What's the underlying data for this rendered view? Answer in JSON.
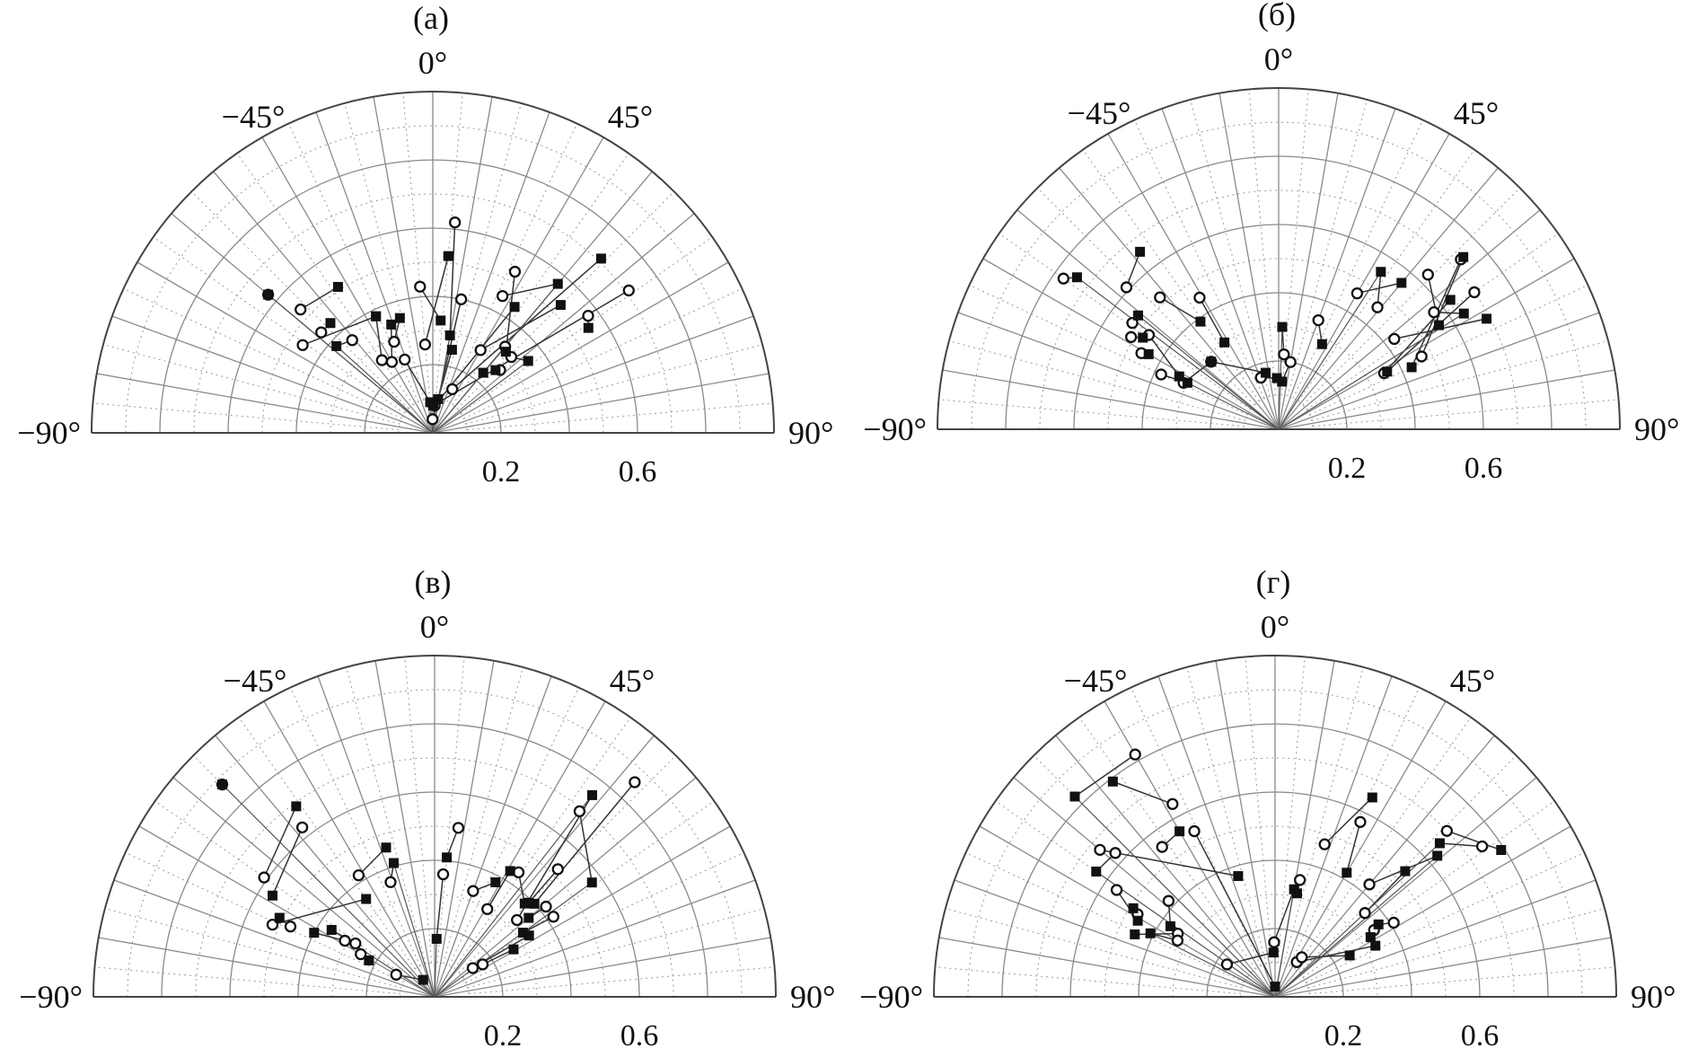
{
  "chart_data": [
    {
      "type": "scatter",
      "panel_label": "(а)",
      "angle_tick_labels": [
        "−90°",
        "−45°",
        "0°",
        "45°",
        "90°"
      ],
      "radial_tick_labels": [
        "0.2",
        "0.6"
      ],
      "rlim": [
        0,
        1
      ],
      "thetalim": [
        -90,
        90
      ],
      "grid": true,
      "series": [
        {
          "marker": "circle",
          "points": [
            {
              "theta": -50,
              "r": 0.63
            },
            {
              "theta": -47,
              "r": 0.53
            },
            {
              "theta": -48,
              "r": 0.44
            },
            {
              "theta": -56,
              "r": 0.46
            },
            {
              "theta": -41,
              "r": 0.36
            },
            {
              "theta": -35,
              "r": 0.26
            },
            {
              "theta": -30,
              "r": 0.24
            },
            {
              "theta": -23,
              "r": 0.29
            },
            {
              "theta": -21,
              "r": 0.23
            },
            {
              "theta": -5,
              "r": 0.43
            },
            {
              "theta": -5,
              "r": 0.26
            },
            {
              "theta": -1,
              "r": 0.04
            },
            {
              "theta": 6,
              "r": 0.62
            },
            {
              "theta": 12,
              "r": 0.4
            },
            {
              "theta": 4,
              "r": 0.08
            },
            {
              "theta": 27,
              "r": 0.53
            },
            {
              "theta": 27,
              "r": 0.45
            },
            {
              "theta": 30,
              "r": 0.28
            },
            {
              "theta": 40,
              "r": 0.33
            },
            {
              "theta": 47,
              "r": 0.27
            },
            {
              "theta": 46,
              "r": 0.32
            },
            {
              "theta": 53,
              "r": 0.57
            },
            {
              "theta": 54,
              "r": 0.71
            },
            {
              "theta": 24,
              "r": 0.14
            }
          ]
        },
        {
          "marker": "square",
          "points": [
            {
              "theta": -50,
              "r": 0.63
            },
            {
              "theta": -33,
              "r": 0.51
            },
            {
              "theta": -43,
              "r": 0.44
            },
            {
              "theta": -26,
              "r": 0.38
            },
            {
              "theta": -48,
              "r": 0.38
            },
            {
              "theta": -26,
              "r": 0.38
            },
            {
              "theta": -21,
              "r": 0.34
            },
            {
              "theta": -16,
              "r": 0.35
            },
            {
              "theta": -5,
              "r": 0.09
            },
            {
              "theta": 4,
              "r": 0.33
            },
            {
              "theta": 5,
              "r": 0.52
            },
            {
              "theta": 13,
              "r": 0.25
            },
            {
              "theta": 10,
              "r": 0.29
            },
            {
              "theta": 9,
              "r": 0.1
            },
            {
              "theta": 33,
              "r": 0.44
            },
            {
              "theta": 42,
              "r": 0.32
            },
            {
              "theta": 40,
              "r": 0.57
            },
            {
              "theta": 45,
              "r": 0.53
            },
            {
              "theta": 40,
              "r": 0.23
            },
            {
              "theta": 45,
              "r": 0.26
            },
            {
              "theta": 53,
              "r": 0.35
            },
            {
              "theta": 56,
              "r": 0.55
            },
            {
              "theta": 1,
              "r": 0.08
            },
            {
              "theta": 44,
              "r": 0.71
            }
          ]
        }
      ]
    },
    {
      "type": "scatter",
      "panel_label": "(б)",
      "angle_tick_labels": [
        "−90°",
        "−45°",
        "0°",
        "45°",
        "90°"
      ],
      "radial_tick_labels": [
        "0.2",
        "0.6"
      ],
      "rlim": [
        0,
        1
      ],
      "thetalim": [
        -90,
        90
      ],
      "grid": true,
      "series": [
        {
          "marker": "circle",
          "points": [
            {
              "theta": -55,
              "r": 0.77
            },
            {
              "theta": -47,
              "r": 0.61
            },
            {
              "theta": -42,
              "r": 0.52
            },
            {
              "theta": -31,
              "r": 0.45
            },
            {
              "theta": -54,
              "r": 0.53
            },
            {
              "theta": -58,
              "r": 0.51
            },
            {
              "theta": -61,
              "r": 0.46
            },
            {
              "theta": -54,
              "r": 0.47
            },
            {
              "theta": -65,
              "r": 0.38
            },
            {
              "theta": -64,
              "r": 0.31
            },
            {
              "theta": -45,
              "r": 0.28
            },
            {
              "theta": -19,
              "r": 0.16
            },
            {
              "theta": 4,
              "r": 0.22
            },
            {
              "theta": 10,
              "r": 0.2
            },
            {
              "theta": 20,
              "r": 0.34
            },
            {
              "theta": 30,
              "r": 0.46
            },
            {
              "theta": 39,
              "r": 0.46
            },
            {
              "theta": 44,
              "r": 0.63
            },
            {
              "theta": 55,
              "r": 0.7
            },
            {
              "theta": 63,
              "r": 0.47
            },
            {
              "theta": 53,
              "r": 0.57
            },
            {
              "theta": 52,
              "r": 0.43
            },
            {
              "theta": 62,
              "r": 0.35
            },
            {
              "theta": 47,
              "r": 0.73
            }
          ]
        },
        {
          "marker": "square",
          "points": [
            {
              "theta": -53,
              "r": 0.74
            },
            {
              "theta": -38,
              "r": 0.66
            },
            {
              "theta": -36,
              "r": 0.39
            },
            {
              "theta": -32,
              "r": 0.3
            },
            {
              "theta": -51,
              "r": 0.53
            },
            {
              "theta": -56,
              "r": 0.48
            },
            {
              "theta": -60,
              "r": 0.44
            },
            {
              "theta": -62,
              "r": 0.33
            },
            {
              "theta": -63,
              "r": 0.3
            },
            {
              "theta": -45,
              "r": 0.28
            },
            {
              "theta": -13,
              "r": 0.17
            },
            {
              "theta": -2,
              "r": 0.15
            },
            {
              "theta": 2,
              "r": 0.3
            },
            {
              "theta": 4,
              "r": 0.14
            },
            {
              "theta": 27,
              "r": 0.28
            },
            {
              "theta": 40,
              "r": 0.56
            },
            {
              "theta": 33,
              "r": 0.55
            },
            {
              "theta": 57,
              "r": 0.56
            },
            {
              "theta": 62,
              "r": 0.36
            },
            {
              "theta": 47,
              "r": 0.74
            },
            {
              "theta": 58,
              "r": 0.64
            },
            {
              "theta": 62,
              "r": 0.69
            },
            {
              "theta": 53,
              "r": 0.63
            },
            {
              "theta": 65,
              "r": 0.43
            }
          ]
        }
      ]
    },
    {
      "type": "scatter",
      "panel_label": "(в)",
      "angle_tick_labels": [
        "−90°",
        "−45°",
        "0°",
        "45°",
        "90°"
      ],
      "radial_tick_labels": [
        "0.2",
        "0.6"
      ],
      "rlim": [
        0,
        1
      ],
      "thetalim": [
        -90,
        90
      ],
      "grid": true,
      "series": [
        {
          "marker": "circle",
          "points": [
            {
              "theta": -45,
              "r": 0.88
            },
            {
              "theta": -55,
              "r": 0.61
            },
            {
              "theta": -38,
              "r": 0.63
            },
            {
              "theta": -32,
              "r": 0.42
            },
            {
              "theta": -21,
              "r": 0.36
            },
            {
              "theta": -66,
              "r": 0.52
            },
            {
              "theta": -64,
              "r": 0.47
            },
            {
              "theta": -58,
              "r": 0.31
            },
            {
              "theta": -56,
              "r": 0.28
            },
            {
              "theta": -60,
              "r": 0.25
            },
            {
              "theta": -60,
              "r": 0.13
            },
            {
              "theta": 8,
              "r": 0.5
            },
            {
              "theta": 4,
              "r": 0.36
            },
            {
              "theta": 20,
              "r": 0.33
            },
            {
              "theta": 31,
              "r": 0.3
            },
            {
              "theta": 34,
              "r": 0.44
            },
            {
              "theta": 47,
              "r": 0.33
            },
            {
              "theta": 44,
              "r": 0.52
            },
            {
              "theta": 51,
              "r": 0.42
            },
            {
              "theta": 56,
              "r": 0.42
            },
            {
              "theta": 38,
              "r": 0.69
            },
            {
              "theta": 43,
              "r": 0.86
            },
            {
              "theta": 56,
              "r": 0.17
            },
            {
              "theta": 53,
              "r": 0.14
            }
          ]
        },
        {
          "marker": "square",
          "points": [
            {
              "theta": -45,
              "r": 0.88
            },
            {
              "theta": -36,
              "r": 0.69
            },
            {
              "theta": -58,
              "r": 0.56
            },
            {
              "theta": -18,
              "r": 0.46
            },
            {
              "theta": -17,
              "r": 0.41
            },
            {
              "theta": -35,
              "r": 0.35
            },
            {
              "theta": -63,
              "r": 0.51
            },
            {
              "theta": -62,
              "r": 0.4
            },
            {
              "theta": -57,
              "r": 0.36
            },
            {
              "theta": -61,
              "r": 0.22
            },
            {
              "theta": -34,
              "r": 0.06
            },
            {
              "theta": 5,
              "r": 0.41
            },
            {
              "theta": 2,
              "r": 0.17
            },
            {
              "theta": 28,
              "r": 0.38
            },
            {
              "theta": 31,
              "r": 0.43
            },
            {
              "theta": 44,
              "r": 0.38
            },
            {
              "theta": 38,
              "r": 0.75
            },
            {
              "theta": 45,
              "r": 0.39
            },
            {
              "theta": 50,
              "r": 0.36
            },
            {
              "theta": 54,
              "r": 0.32
            },
            {
              "theta": 54,
              "r": 0.57
            },
            {
              "theta": 47,
              "r": 0.4
            },
            {
              "theta": 59,
              "r": 0.27
            },
            {
              "theta": 57,
              "r": 0.33
            }
          ]
        }
      ]
    },
    {
      "type": "scatter",
      "panel_label": "(г)",
      "angle_tick_labels": [
        "−90°",
        "−45°",
        "0°",
        "45°",
        "90°"
      ],
      "radial_tick_labels": [
        "0.2",
        "0.6"
      ],
      "rlim": [
        0,
        1
      ],
      "thetalim": [
        -90,
        90
      ],
      "grid": true,
      "series": [
        {
          "marker": "circle",
          "points": [
            {
              "theta": -30,
              "r": 0.82
            },
            {
              "theta": -28,
              "r": 0.64
            },
            {
              "theta": -37,
              "r": 0.55
            },
            {
              "theta": -50,
              "r": 0.67
            },
            {
              "theta": -48,
              "r": 0.63
            },
            {
              "theta": -59,
              "r": 0.47
            },
            {
              "theta": -56,
              "r": 0.56
            },
            {
              "theta": -57,
              "r": 0.34
            },
            {
              "theta": -60,
              "r": 0.33
            },
            {
              "theta": -48,
              "r": 0.42
            },
            {
              "theta": -56,
              "r": 0.17
            },
            {
              "theta": -26,
              "r": 0.54
            },
            {
              "theta": -1,
              "r": 0.16
            },
            {
              "theta": 12,
              "r": 0.35
            },
            {
              "theta": 18,
              "r": 0.47
            },
            {
              "theta": 26,
              "r": 0.57
            },
            {
              "theta": 40,
              "r": 0.43
            },
            {
              "theta": 47,
              "r": 0.36
            },
            {
              "theta": 56,
              "r": 0.35
            },
            {
              "theta": 58,
              "r": 0.41
            },
            {
              "theta": 54,
              "r": 0.75
            },
            {
              "theta": 46,
              "r": 0.7
            },
            {
              "theta": 32,
              "r": 0.12
            },
            {
              "theta": 34,
              "r": 0.14
            }
          ]
        },
        {
          "marker": "square",
          "points": [
            {
              "theta": -45,
              "r": 0.83
            },
            {
              "theta": -37,
              "r": 0.79
            },
            {
              "theta": -30,
              "r": 0.56
            },
            {
              "theta": -17,
              "r": 0.37
            },
            {
              "theta": -55,
              "r": 0.64
            },
            {
              "theta": -58,
              "r": 0.49
            },
            {
              "theta": -61,
              "r": 0.46
            },
            {
              "theta": -66,
              "r": 0.45
            },
            {
              "theta": -63,
              "r": 0.41
            },
            {
              "theta": -56,
              "r": 0.37
            },
            {
              "theta": -2,
              "r": 0.13
            },
            {
              "theta": 0,
              "r": 0.03
            },
            {
              "theta": 10,
              "r": 0.32
            },
            {
              "theta": 12,
              "r": 0.31
            },
            {
              "theta": 26,
              "r": 0.65
            },
            {
              "theta": 30,
              "r": 0.42
            },
            {
              "theta": 49,
              "r": 0.63
            },
            {
              "theta": 46,
              "r": 0.53
            },
            {
              "theta": 58,
              "r": 0.33
            },
            {
              "theta": 55,
              "r": 0.37
            },
            {
              "theta": 47,
              "r": 0.66
            },
            {
              "theta": 57,
              "r": 0.79
            },
            {
              "theta": 63,
              "r": 0.33
            },
            {
              "theta": 61,
              "r": 0.25
            }
          ]
        }
      ]
    }
  ]
}
